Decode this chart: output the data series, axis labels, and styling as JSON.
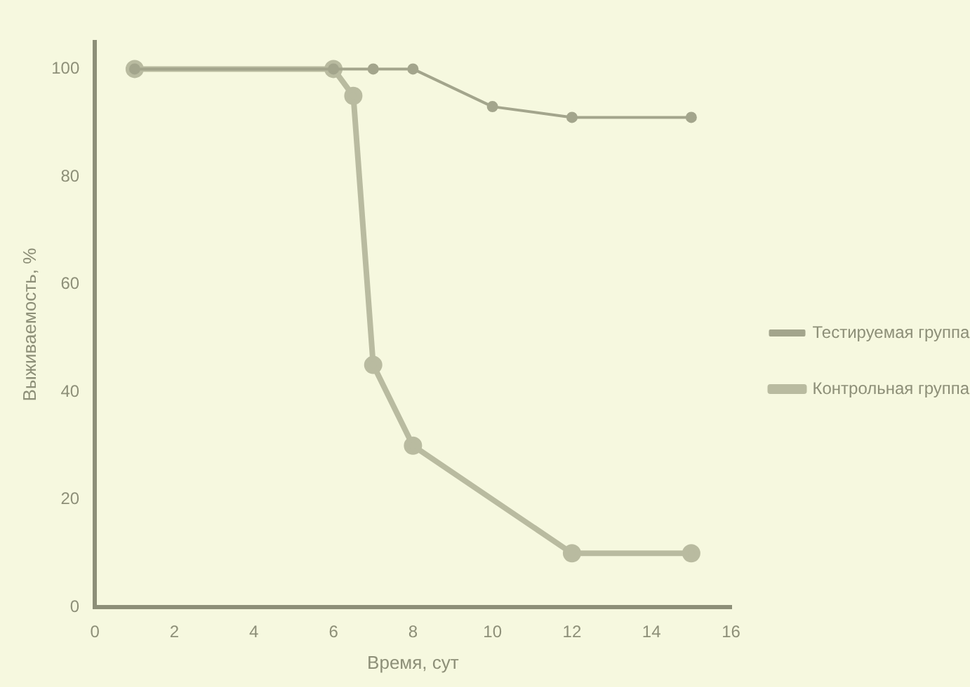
{
  "chart_data": {
    "type": "line",
    "xlabel": "Время, сут",
    "ylabel": "Выживаемость, %",
    "xlim": [
      0,
      16
    ],
    "ylim": [
      0,
      105
    ],
    "xticks": [
      0,
      2,
      4,
      6,
      8,
      10,
      12,
      14,
      16
    ],
    "yticks": [
      0,
      20,
      40,
      60,
      80,
      100
    ],
    "series": [
      {
        "name": "Тестируемая группа",
        "color": "#a3a58c",
        "x": [
          1,
          6,
          7,
          8,
          10,
          12,
          15
        ],
        "values": [
          100,
          100,
          100,
          100,
          93,
          91,
          91
        ]
      },
      {
        "name": "Контрольная группа",
        "color": "#b9bba0",
        "x": [
          1,
          6,
          6.5,
          7,
          8,
          12,
          15
        ],
        "values": [
          100,
          100,
          95,
          45,
          30,
          10,
          10
        ]
      }
    ],
    "grid": false,
    "legend": "right",
    "marker": "circle",
    "line_style": "solid"
  }
}
